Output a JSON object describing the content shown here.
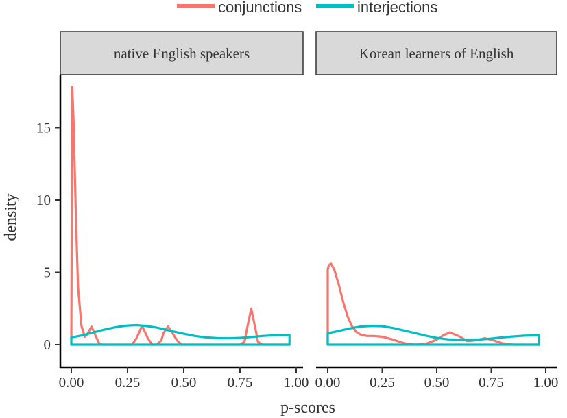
{
  "chart_data": {
    "type": "line",
    "subtype": "density",
    "xlabel": "p-scores",
    "ylabel": "density",
    "legend": {
      "position": "top",
      "entries": [
        {
          "name": "conjunctions",
          "color": "#F8766D"
        },
        {
          "name": "interjections",
          "color": "#00BFC4"
        }
      ]
    },
    "x_ticks": [
      "0.00",
      "0.25",
      "0.50",
      "0.75",
      "1.00"
    ],
    "y_ticks": [
      "0",
      "5",
      "10",
      "15"
    ],
    "xlim": [
      0,
      1
    ],
    "ylim": [
      0,
      18
    ],
    "grid": false,
    "panels": [
      {
        "title": "native English speakers",
        "series": [
          {
            "name": "conjunctions",
            "color": "#F8766D",
            "x": [
              0,
              0.004,
              0.01,
              0.02,
              0.03,
              0.045,
              0.06,
              0.07,
              0.09,
              0.11,
              0.125,
              0.14,
              0.16,
              0.2,
              0.24,
              0.27,
              0.29,
              0.315,
              0.34,
              0.36,
              0.38,
              0.4,
              0.41,
              0.43,
              0.45,
              0.47,
              0.49,
              0.55,
              0.65,
              0.75,
              0.77,
              0.78,
              0.8,
              0.82,
              0.83,
              0.85,
              0.9,
              0.97
            ],
            "y": [
              0,
              17.8,
              15.5,
              9,
              4,
              1.3,
              0.55,
              0.7,
              1.25,
              0.55,
              0.05,
              0,
              0,
              0,
              0,
              0,
              0.45,
              1.3,
              0.45,
              0,
              0,
              0.3,
              0.8,
              1.25,
              0.8,
              0.3,
              0,
              0,
              0,
              0,
              0.2,
              1,
              2.5,
              1,
              0.2,
              0,
              0,
              0
            ]
          },
          {
            "name": "interjections",
            "color": "#00BFC4",
            "x": [
              0,
              0,
              0.05,
              0.1,
              0.15,
              0.2,
              0.25,
              0.29,
              0.33,
              0.38,
              0.43,
              0.48,
              0.55,
              0.6,
              0.65,
              0.7,
              0.75,
              0.8,
              0.85,
              0.9,
              0.97,
              0.97,
              0
            ],
            "y": [
              0,
              0.5,
              0.65,
              0.85,
              1.05,
              1.22,
              1.32,
              1.35,
              1.3,
              1.18,
              1.0,
              0.82,
              0.6,
              0.5,
              0.45,
              0.44,
              0.47,
              0.53,
              0.6,
              0.65,
              0.67,
              0,
              0
            ]
          }
        ]
      },
      {
        "title": "Korean learners of English",
        "series": [
          {
            "name": "conjunctions",
            "color": "#F8766D",
            "x": [
              0,
              0,
              0.005,
              0.015,
              0.03,
              0.05,
              0.07,
              0.09,
              0.11,
              0.13,
              0.15,
              0.18,
              0.21,
              0.25,
              0.3,
              0.35,
              0.4,
              0.45,
              0.5,
              0.53,
              0.56,
              0.6,
              0.64,
              0.68,
              0.72,
              0.76,
              0.8,
              0.85,
              0.9,
              0.97
            ],
            "y": [
              0,
              5.2,
              5.5,
              5.6,
              5.2,
              4.2,
              3.0,
              2.0,
              1.3,
              0.9,
              0.7,
              0.6,
              0.6,
              0.55,
              0.35,
              0.1,
              0,
              0.05,
              0.35,
              0.65,
              0.85,
              0.6,
              0.25,
              0.3,
              0.45,
              0.3,
              0.1,
              0,
              0,
              0
            ]
          },
          {
            "name": "interjections",
            "color": "#00BFC4",
            "x": [
              0,
              0,
              0.05,
              0.1,
              0.15,
              0.2,
              0.25,
              0.3,
              0.35,
              0.4,
              0.45,
              0.5,
              0.55,
              0.6,
              0.65,
              0.7,
              0.75,
              0.8,
              0.85,
              0.9,
              0.97,
              0.97,
              0
            ],
            "y": [
              0,
              0.78,
              0.95,
              1.12,
              1.25,
              1.3,
              1.28,
              1.15,
              0.98,
              0.8,
              0.62,
              0.47,
              0.37,
              0.33,
              0.33,
              0.36,
              0.42,
              0.5,
              0.57,
              0.62,
              0.65,
              0,
              0
            ]
          }
        ]
      }
    ]
  }
}
